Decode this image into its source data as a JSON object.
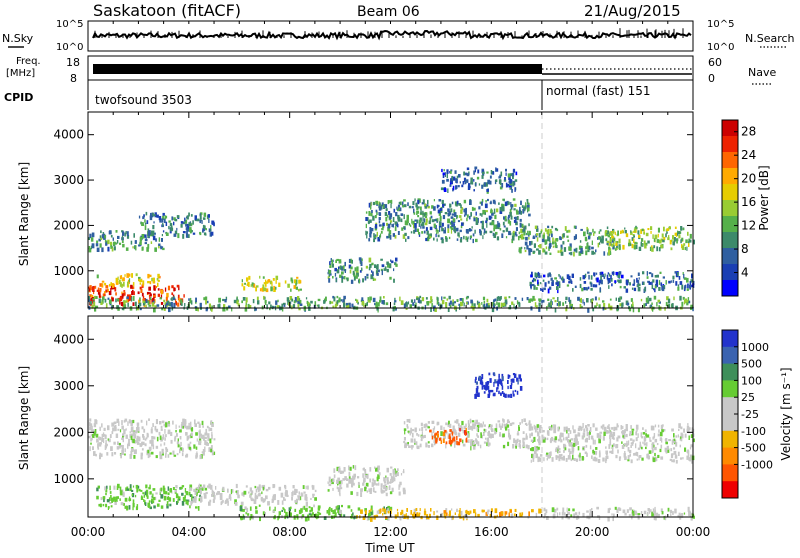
{
  "header": {
    "station": "Saskatoon (fitACF)",
    "beam": "Beam 06",
    "date": "21/Aug/2015"
  },
  "strips": {
    "nsky_label": "N.Sky",
    "nsearch_label": "N.Search",
    "noise_ticks_left": [
      "10^5",
      "10^0"
    ],
    "noise_ticks_right": [
      "10^5",
      "10^0"
    ],
    "freq_label_top": "Freq.",
    "freq_label_unit": "[MHz]",
    "freq_ticks": [
      "18",
      "8"
    ],
    "nave_label": "Nave",
    "nave_ticks": [
      "60",
      "0"
    ],
    "cpid_label": "CPID",
    "cpid_modes": [
      {
        "name": "twofsound 3503",
        "start_hour": 0,
        "end_hour": 18
      },
      {
        "name": "normal (fast) 151",
        "start_hour": 18,
        "end_hour": 24
      }
    ]
  },
  "colors": {
    "power_scale": [
      "#0000ff",
      "#1a3fb3",
      "#2f5fa0",
      "#3c8a6a",
      "#55b04a",
      "#99cc33",
      "#e6cc00",
      "#ffaa00",
      "#ff6600",
      "#ee2200",
      "#cc0000"
    ],
    "velocity_scale": [
      "#2233cc",
      "#3a63b0",
      "#3e8f5a",
      "#66cc33",
      "#c8c8c8",
      "#c8c8c8",
      "#f0b400",
      "#ff8a00",
      "#ff5500",
      "#ee0000"
    ]
  },
  "chart_data": [
    {
      "type": "heatmap",
      "variable": "power",
      "xlabel": "",
      "ylabel": "Slant Range [km]",
      "x_ticks": [
        "00:00",
        "04:00",
        "08:00",
        "12:00",
        "16:00",
        "20:00",
        "00:00"
      ],
      "xlim_hours": [
        0,
        24
      ],
      "ylim_km": [
        180,
        4500
      ],
      "y_ticks": [
        1000,
        2000,
        3000,
        4000
      ],
      "colorbar": {
        "label": "Power [dB]",
        "range": [
          0,
          30
        ],
        "ticks": [
          4,
          8,
          12,
          16,
          20,
          24,
          28
        ]
      },
      "regions": [
        {
          "t0": 0.0,
          "t1": 3.8,
          "r0": 300,
          "r1": 700,
          "level": 0.9
        },
        {
          "t0": 0.3,
          "t1": 2.8,
          "r0": 700,
          "r1": 950,
          "level": 0.6
        },
        {
          "t0": 0.0,
          "t1": 3.0,
          "r0": 1500,
          "r1": 1900,
          "level": 0.3
        },
        {
          "t0": 2.0,
          "t1": 5.0,
          "r0": 1800,
          "r1": 2300,
          "level": 0.25
        },
        {
          "t0": 6.0,
          "t1": 8.5,
          "r0": 600,
          "r1": 900,
          "level": 0.55
        },
        {
          "t0": 9.5,
          "t1": 12.2,
          "r0": 800,
          "r1": 1300,
          "level": 0.3
        },
        {
          "t0": 0.0,
          "t1": 24.0,
          "r0": 180,
          "r1": 450,
          "level": 0.35
        },
        {
          "t0": 11.0,
          "t1": 17.5,
          "r0": 1700,
          "r1": 2600,
          "level": 0.3
        },
        {
          "t0": 14.0,
          "t1": 17.0,
          "r0": 2800,
          "r1": 3300,
          "level": 0.2
        },
        {
          "t0": 17.0,
          "t1": 21.0,
          "r0": 1400,
          "r1": 2000,
          "level": 0.35
        },
        {
          "t0": 20.5,
          "t1": 24.0,
          "r0": 1500,
          "r1": 2000,
          "level": 0.45
        },
        {
          "t0": 17.5,
          "t1": 24.0,
          "r0": 600,
          "r1": 1000,
          "level": 0.2
        }
      ]
    },
    {
      "type": "heatmap",
      "variable": "velocity",
      "xlabel": "Time UT",
      "ylabel": "Slant Range [km]",
      "x_ticks": [
        "00:00",
        "04:00",
        "08:00",
        "12:00",
        "16:00",
        "20:00",
        "00:00"
      ],
      "xlim_hours": [
        0,
        24
      ],
      "ylim_km": [
        180,
        4500
      ],
      "y_ticks": [
        1000,
        2000,
        3000,
        4000
      ],
      "colorbar": {
        "label": "Velocity [m s⁻¹]",
        "ticks": [
          "1000",
          "500",
          "100",
          "25",
          "-25",
          "-100",
          "-500",
          "-1000"
        ]
      },
      "regions": [
        {
          "t0": 0.3,
          "t1": 4.5,
          "r0": 400,
          "r1": 900,
          "cls": 3
        },
        {
          "t0": 0.0,
          "t1": 5.0,
          "r0": 1500,
          "r1": 2300,
          "cls": 4
        },
        {
          "t0": 4.0,
          "t1": 9.0,
          "r0": 500,
          "r1": 900,
          "cls": 4
        },
        {
          "t0": 9.5,
          "t1": 12.5,
          "r0": 700,
          "r1": 1300,
          "cls": 4
        },
        {
          "t0": 6.0,
          "t1": 12.0,
          "r0": 180,
          "r1": 450,
          "cls": 3
        },
        {
          "t0": 10.5,
          "t1": 18.0,
          "r0": 180,
          "r1": 380,
          "cls": 6
        },
        {
          "t0": 12.5,
          "t1": 17.5,
          "r0": 1700,
          "r1": 2300,
          "cls": 4
        },
        {
          "t0": 13.5,
          "t1": 15.0,
          "r0": 1800,
          "r1": 2100,
          "cls": 8
        },
        {
          "t0": 15.3,
          "t1": 17.2,
          "r0": 2800,
          "r1": 3300,
          "cls": 0
        },
        {
          "t0": 17.5,
          "t1": 24.0,
          "r0": 1400,
          "r1": 2200,
          "cls": 4
        },
        {
          "t0": 18.0,
          "t1": 24.0,
          "r0": 180,
          "r1": 400,
          "cls": 4
        }
      ]
    }
  ]
}
